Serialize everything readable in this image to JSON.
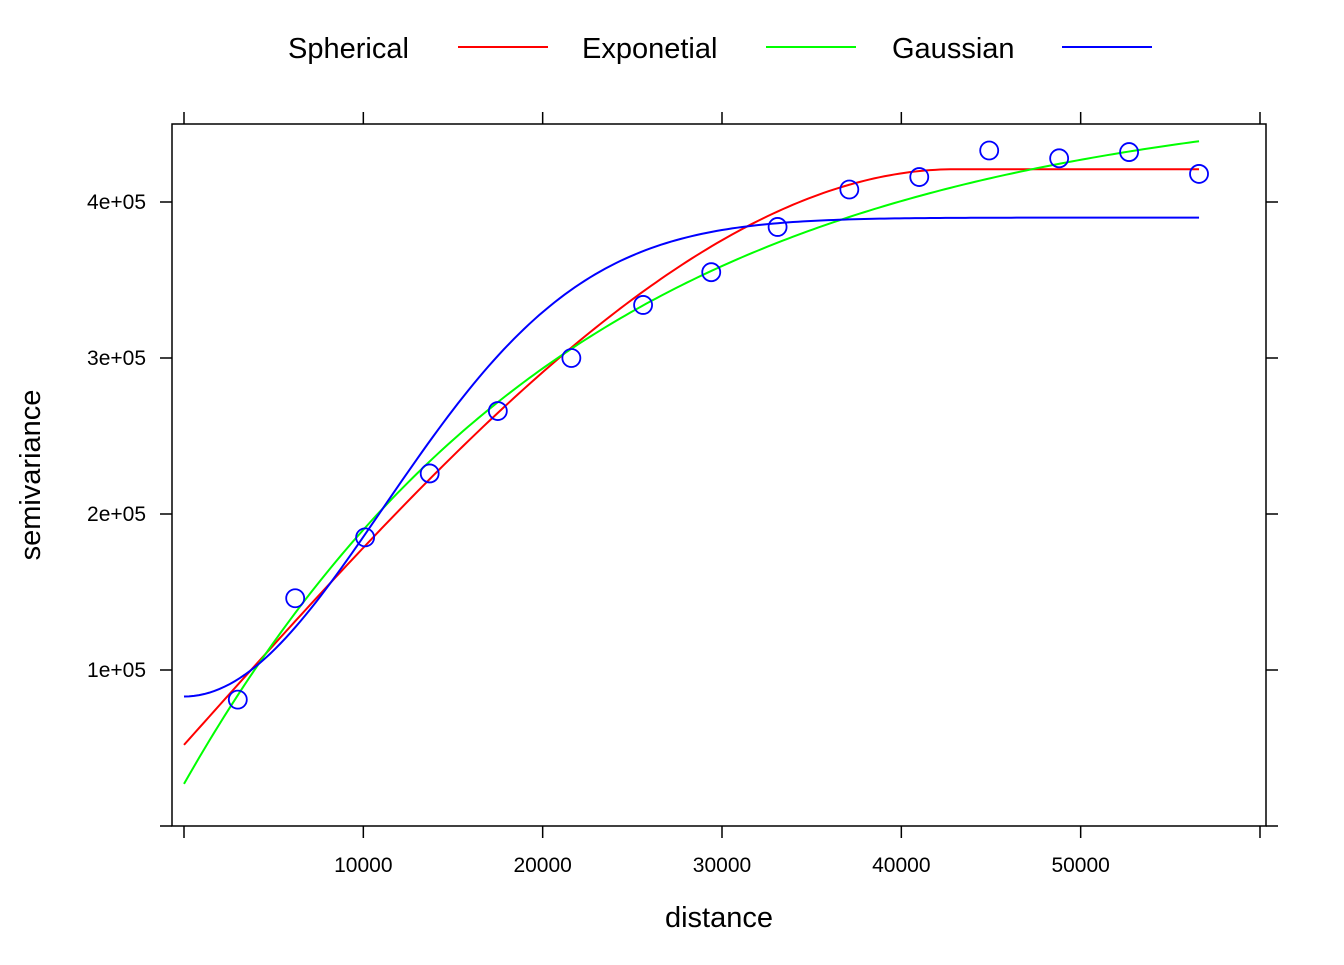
{
  "chart_data": {
    "type": "scatter",
    "xlabel": "distance",
    "ylabel": "semivariance",
    "xlim": [
      0,
      60000
    ],
    "ylim": [
      0,
      450000
    ],
    "x_ticks": [
      {
        "value": 10000,
        "label": "10000"
      },
      {
        "value": 20000,
        "label": "20000"
      },
      {
        "value": 30000,
        "label": "30000"
      },
      {
        "value": 40000,
        "label": "40000"
      },
      {
        "value": 50000,
        "label": "50000"
      }
    ],
    "y_ticks": [
      {
        "value": 100000,
        "label": "1e+05"
      },
      {
        "value": 200000,
        "label": "2e+05"
      },
      {
        "value": 300000,
        "label": "3e+05"
      },
      {
        "value": 400000,
        "label": "4e+05"
      }
    ],
    "legend_position": "top",
    "grid": false,
    "points": {
      "color": "#0000ff",
      "marker": "open-circle",
      "x": [
        3000,
        6200,
        10100,
        13700,
        17500,
        21600,
        25600,
        29400,
        33100,
        37100,
        41000,
        44900,
        48800,
        52700,
        56600
      ],
      "y": [
        81000,
        146000,
        185000,
        226000,
        266000,
        300000,
        334000,
        355000,
        384000,
        408000,
        416000,
        433000,
        428000,
        432000,
        418000
      ]
    },
    "series": [
      {
        "name": "Spherical",
        "color": "#ff0000",
        "model": "spherical",
        "nugget": 52000,
        "sill": 421000,
        "range": 43000
      },
      {
        "name": "Exponetial",
        "color": "#00ff00",
        "model": "exponential",
        "nugget": 27000,
        "sill": 473000,
        "range": 22000
      },
      {
        "name": "Gaussian",
        "color": "#0000ff",
        "model": "gaussian",
        "nugget": 83000,
        "sill": 390000,
        "range": 15700
      }
    ],
    "curve_x_range": [
      0,
      56600
    ]
  }
}
